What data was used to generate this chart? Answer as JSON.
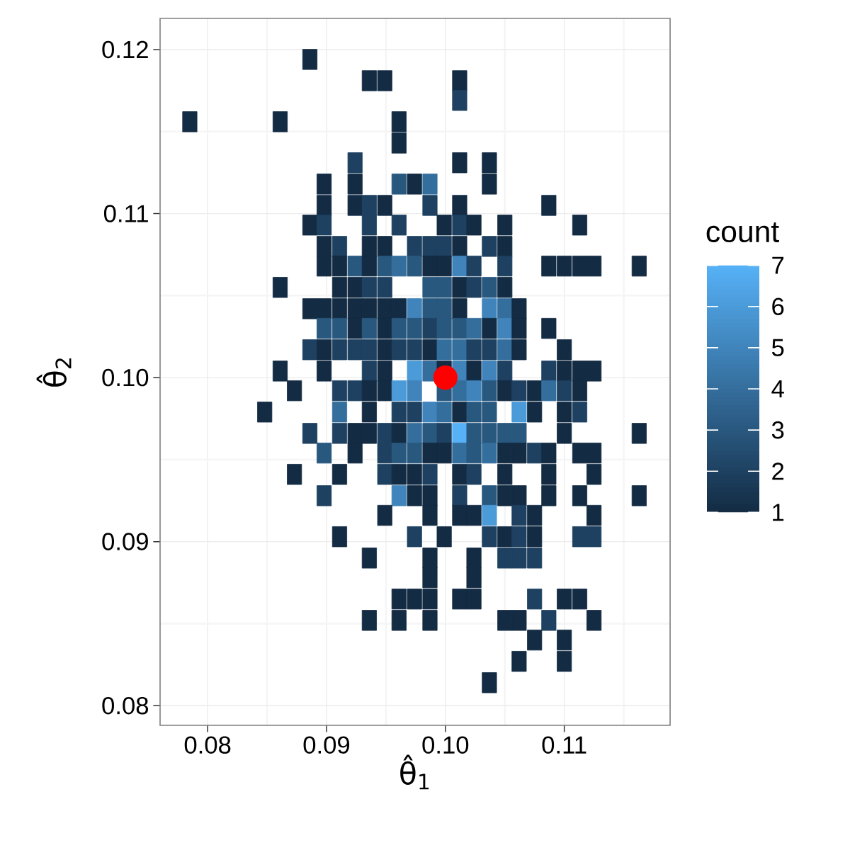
{
  "chart_data": {
    "type": "scatter",
    "marker": "square",
    "xlabel": "θ̂$_{1}$",
    "ylabel": "θ̂$_{2}$",
    "clabel": "count",
    "xlim": [
      0.076,
      0.1189
    ],
    "ylim": [
      0.0788,
      0.1219
    ],
    "xticks": [
      0.08,
      0.09,
      {
        "value": 0.1,
        "label": "0.10"
      },
      0.11
    ],
    "yticks": [
      0.08,
      0.09,
      {
        "value": 0.1,
        "label": "0.10"
      },
      0.11,
      0.12
    ],
    "clim": [
      1,
      7
    ],
    "cticks": [
      1,
      2,
      3,
      4,
      5,
      6,
      7
    ],
    "grid": true,
    "series": [
      {
        "x": [
          0.0886,
          0.0936,
          0.0949,
          0.1012,
          0.1012,
          0.0785,
          0.0861,
          0.0961,
          0.0961,
          0.0924,
          0.1012,
          0.1037,
          0.0898,
          0.0924,
          0.0961,
          0.0974,
          0.0987,
          0.1037,
          0.0898,
          0.0924,
          0.0936,
          0.0949,
          0.0987,
          0.1012,
          0.1087,
          0.0886,
          0.0898,
          0.0936,
          0.0961,
          0.0999,
          0.1012,
          0.1024,
          0.105,
          0.1113,
          0.0898,
          0.0911,
          0.0936,
          0.0949,
          0.0974,
          0.0987,
          0.0999,
          0.1012,
          0.1037,
          0.105,
          0.0898,
          0.0911,
          0.0924,
          0.0936,
          0.0949,
          0.0961,
          0.0974,
          0.0987,
          0.0999,
          0.1012,
          0.1024,
          0.105,
          0.1087,
          0.11,
          0.1113,
          0.1125,
          0.1163,
          0.0861,
          0.0911,
          0.0924,
          0.0936,
          0.0949,
          0.0987,
          0.0999,
          0.1012,
          0.1024,
          0.1037,
          0.105,
          0.0886,
          0.0898,
          0.0911,
          0.0924,
          0.0936,
          0.0949,
          0.0961,
          0.0974,
          0.0987,
          0.0999,
          0.1012,
          0.1037,
          0.105,
          0.1062,
          0.0898,
          0.0911,
          0.0924,
          0.0936,
          0.0949,
          0.0961,
          0.0974,
          0.0987,
          0.0999,
          0.1012,
          0.1024,
          0.1037,
          0.105,
          0.1062,
          0.1087,
          0.0886,
          0.0898,
          0.0911,
          0.0924,
          0.0936,
          0.0949,
          0.0961,
          0.0974,
          0.0987,
          0.0999,
          0.1012,
          0.1024,
          0.1037,
          0.105,
          0.1062,
          0.11,
          0.0861,
          0.0898,
          0.0936,
          0.0949,
          0.0974,
          0.0987,
          0.0999,
          0.1012,
          0.1024,
          0.1037,
          0.105,
          0.1087,
          0.11,
          0.1113,
          0.1125,
          0.0873,
          0.0911,
          0.0924,
          0.0936,
          0.0949,
          0.0961,
          0.0974,
          0.0999,
          0.1012,
          0.1024,
          0.1037,
          0.105,
          0.1062,
          0.1075,
          0.1087,
          0.11,
          0.1113,
          0.0848,
          0.0911,
          0.0936,
          0.0961,
          0.0974,
          0.0987,
          0.0999,
          0.1012,
          0.1024,
          0.1037,
          0.1062,
          0.1075,
          0.11,
          0.1113,
          0.0886,
          0.0911,
          0.0924,
          0.0936,
          0.0949,
          0.0961,
          0.0974,
          0.0987,
          0.0999,
          0.1012,
          0.1024,
          0.1037,
          0.105,
          0.1062,
          0.11,
          0.1163,
          0.0898,
          0.0924,
          0.0949,
          0.0961,
          0.0974,
          0.0987,
          0.0999,
          0.1012,
          0.1024,
          0.1037,
          0.105,
          0.1062,
          0.1075,
          0.1087,
          0.1113,
          0.1125,
          0.0873,
          0.0911,
          0.0949,
          0.0961,
          0.0974,
          0.0987,
          0.1012,
          0.1024,
          0.105,
          0.1087,
          0.1125,
          0.0898,
          0.0961,
          0.0974,
          0.0987,
          0.1012,
          0.1037,
          0.105,
          0.1062,
          0.1087,
          0.1113,
          0.1163,
          0.0949,
          0.0987,
          0.1012,
          0.1024,
          0.1037,
          0.1062,
          0.1075,
          0.1125,
          0.0911,
          0.0974,
          0.0999,
          0.1037,
          0.105,
          0.1062,
          0.1075,
          0.1113,
          0.1125,
          0.0936,
          0.0987,
          0.1024,
          0.105,
          0.1062,
          0.1075,
          0.0987,
          0.1024,
          0.0961,
          0.0974,
          0.0987,
          0.1012,
          0.1024,
          0.1075,
          0.11,
          0.1113,
          0.0936,
          0.0961,
          0.0987,
          0.105,
          0.1062,
          0.1087,
          0.1125,
          0.1075,
          0.11,
          0.1062,
          0.11,
          0.1037
        ],
        "values": [
          0.1194,
          0.1181,
          0.1181,
          0.1181,
          0.1169,
          0.1156,
          0.1156,
          0.1156,
          0.1143,
          0.1131,
          0.1131,
          0.1131,
          0.1118,
          0.1118,
          0.1118,
          0.1118,
          0.1118,
          0.1118,
          0.1105,
          0.1105,
          0.1105,
          0.1105,
          0.1105,
          0.1105,
          0.1105,
          0.1093,
          0.1093,
          0.1093,
          0.1093,
          0.1093,
          0.1093,
          0.1093,
          0.1093,
          0.1093,
          0.108,
          0.108,
          0.108,
          0.108,
          0.108,
          0.108,
          0.108,
          0.108,
          0.108,
          0.108,
          0.1068,
          0.1068,
          0.1068,
          0.1068,
          0.1068,
          0.1068,
          0.1068,
          0.1068,
          0.1068,
          0.1068,
          0.1068,
          0.1068,
          0.1068,
          0.1068,
          0.1068,
          0.1068,
          0.1068,
          0.1055,
          0.1055,
          0.1055,
          0.1055,
          0.1055,
          0.1055,
          0.1055,
          0.1055,
          0.1055,
          0.1055,
          0.1055,
          0.1042,
          0.1042,
          0.1042,
          0.1042,
          0.1042,
          0.1042,
          0.1042,
          0.1042,
          0.1042,
          0.1042,
          0.1042,
          0.1042,
          0.1042,
          0.1042,
          0.103,
          0.103,
          0.103,
          0.103,
          0.103,
          0.103,
          0.103,
          0.103,
          0.103,
          0.103,
          0.103,
          0.103,
          0.103,
          0.103,
          0.103,
          0.1017,
          0.1017,
          0.1017,
          0.1017,
          0.1017,
          0.1017,
          0.1017,
          0.1017,
          0.1017,
          0.1017,
          0.1017,
          0.1017,
          0.1017,
          0.1017,
          0.1017,
          0.1017,
          0.1004,
          0.1004,
          0.1004,
          0.1004,
          0.1004,
          0.1004,
          0.1004,
          0.1004,
          0.1004,
          0.1004,
          0.1004,
          0.1004,
          0.1004,
          0.1004,
          0.1004,
          0.0992,
          0.0992,
          0.0992,
          0.0992,
          0.0992,
          0.0992,
          0.0992,
          0.0992,
          0.0992,
          0.0992,
          0.0992,
          0.0992,
          0.0992,
          0.0992,
          0.0992,
          0.0992,
          0.0992,
          0.0979,
          0.0979,
          0.0979,
          0.0979,
          0.0979,
          0.0979,
          0.0979,
          0.0979,
          0.0979,
          0.0979,
          0.0979,
          0.0979,
          0.0979,
          0.0979,
          0.0966,
          0.0966,
          0.0966,
          0.0966,
          0.0966,
          0.0966,
          0.0966,
          0.0966,
          0.0966,
          0.0966,
          0.0966,
          0.0966,
          0.0966,
          0.0966,
          0.0966,
          0.0966,
          0.0954,
          0.0954,
          0.0954,
          0.0954,
          0.0954,
          0.0954,
          0.0954,
          0.0954,
          0.0954,
          0.0954,
          0.0954,
          0.0954,
          0.0954,
          0.0954,
          0.0954,
          0.0954,
          0.0941,
          0.0941,
          0.0941,
          0.0941,
          0.0941,
          0.0941,
          0.0941,
          0.0941,
          0.0941,
          0.0941,
          0.0941,
          0.0928,
          0.0928,
          0.0928,
          0.0928,
          0.0928,
          0.0928,
          0.0928,
          0.0928,
          0.0928,
          0.0928,
          0.0928,
          0.0916,
          0.0916,
          0.0916,
          0.0916,
          0.0916,
          0.0916,
          0.0916,
          0.0916,
          0.0903,
          0.0903,
          0.0903,
          0.0903,
          0.0903,
          0.0903,
          0.0903,
          0.0903,
          0.0903,
          0.089,
          0.089,
          0.089,
          0.089,
          0.089,
          0.089,
          0.0878,
          0.0878,
          0.0865,
          0.0865,
          0.0865,
          0.0865,
          0.0865,
          0.0865,
          0.0865,
          0.0865,
          0.0852,
          0.0852,
          0.0852,
          0.0852,
          0.0852,
          0.0852,
          0.0852,
          0.084,
          0.084,
          0.0827,
          0.0827,
          0.0814
        ],
        "cvalues": [
          1,
          1,
          1,
          1,
          2,
          1,
          1,
          1,
          1,
          2,
          1,
          1,
          1,
          1,
          3,
          1,
          4,
          1,
          1,
          1,
          2,
          1,
          2,
          1,
          1,
          1,
          2,
          2,
          2,
          1,
          2,
          1,
          1,
          1,
          1,
          2,
          1,
          1,
          2,
          2,
          2,
          1,
          2,
          1,
          1,
          1,
          3,
          1,
          3,
          4,
          3,
          1,
          1,
          5,
          2,
          2,
          1,
          1,
          1,
          1,
          1,
          1,
          1,
          1,
          2,
          2,
          3,
          3,
          1,
          2,
          3,
          1,
          1,
          1,
          1,
          1,
          1,
          1,
          1,
          5,
          3,
          3,
          1,
          5,
          4,
          1,
          3,
          3,
          1,
          3,
          1,
          3,
          3,
          2,
          3,
          3,
          4,
          1,
          5,
          1,
          1,
          2,
          1,
          2,
          2,
          2,
          1,
          2,
          2,
          1,
          4,
          4,
          2,
          2,
          4,
          1,
          1,
          1,
          1,
          2,
          1,
          6,
          4,
          1,
          5,
          1,
          5,
          2,
          2,
          1,
          1,
          1,
          1,
          2,
          2,
          1,
          1,
          6,
          5,
          3,
          4,
          5,
          3,
          1,
          2,
          1,
          4,
          2,
          1,
          1,
          4,
          1,
          2,
          2,
          5,
          4,
          1,
          3,
          3,
          6,
          1,
          1,
          2,
          2,
          2,
          1,
          1,
          2,
          1,
          4,
          3,
          2,
          7,
          3,
          3,
          3,
          3,
          1,
          1,
          3,
          1,
          2,
          3,
          3,
          1,
          1,
          4,
          3,
          4,
          1,
          1,
          2,
          1,
          1,
          1,
          1,
          1,
          2,
          1,
          1,
          2,
          1,
          2,
          1,
          1,
          1,
          2,
          5,
          1,
          1,
          2,
          3,
          1,
          1,
          1,
          1,
          1,
          1,
          1,
          1,
          1,
          6,
          2,
          1,
          1,
          1,
          2,
          1,
          2,
          1,
          2,
          1,
          2,
          2,
          1,
          1,
          1,
          2,
          2,
          2,
          1,
          1,
          1,
          1,
          1,
          1,
          1,
          2,
          1,
          1,
          1,
          1,
          1,
          1,
          1,
          2,
          1,
          1,
          1,
          1,
          1,
          1
        ],
        "colors": [
          "#132B43",
          "#132B43",
          "#132B43",
          "#132B43",
          "#1E4161",
          "#132B43",
          "#132B43",
          "#132B43",
          "#132B43",
          "#1E4161",
          "#132B43",
          "#132B43",
          "#132B43",
          "#132B43",
          "#29587F",
          "#132B43",
          "#346E9D",
          "#132B43",
          "#132B43",
          "#132B43",
          "#1E4161",
          "#132B43",
          "#1E4161",
          "#132B43",
          "#132B43",
          "#132B43",
          "#1E4161",
          "#1E4161",
          "#1E4161",
          "#132B43",
          "#1E4161",
          "#132B43",
          "#132B43",
          "#132B43",
          "#132B43",
          "#1E4161",
          "#132B43",
          "#132B43",
          "#1E4161",
          "#1E4161",
          "#1E4161",
          "#132B43",
          "#1E4161",
          "#132B43",
          "#132B43",
          "#132B43",
          "#29587F",
          "#132B43",
          "#29587F",
          "#346E9D",
          "#29587F",
          "#132B43",
          "#132B43",
          "#4084BB",
          "#1E4161",
          "#1E4161",
          "#132B43",
          "#132B43",
          "#132B43",
          "#132B43",
          "#132B43",
          "#132B43",
          "#132B43",
          "#132B43",
          "#1E4161",
          "#1E4161",
          "#29587F",
          "#29587F",
          "#132B43",
          "#1E4161",
          "#29587F",
          "#132B43",
          "#132B43",
          "#132B43",
          "#132B43",
          "#132B43",
          "#132B43",
          "#132B43",
          "#132B43",
          "#4084BB",
          "#29587F",
          "#29587F",
          "#132B43",
          "#4084BB",
          "#346E9D",
          "#132B43",
          "#29587F",
          "#29587F",
          "#132B43",
          "#29587F",
          "#132B43",
          "#29587F",
          "#29587F",
          "#1E4161",
          "#29587F",
          "#29587F",
          "#346E9D",
          "#132B43",
          "#4084BB",
          "#132B43",
          "#132B43",
          "#1E4161",
          "#132B43",
          "#1E4161",
          "#1E4161",
          "#1E4161",
          "#132B43",
          "#1E4161",
          "#1E4161",
          "#132B43",
          "#346E9D",
          "#346E9D",
          "#1E4161",
          "#1E4161",
          "#346E9D",
          "#132B43",
          "#132B43",
          "#132B43",
          "#132B43",
          "#1E4161",
          "#132B43",
          "#4B9BD9",
          "#346E9D",
          "#132B43",
          "#4084BB",
          "#132B43",
          "#4084BB",
          "#1E4161",
          "#1E4161",
          "#132B43",
          "#132B43",
          "#132B43",
          "#132B43",
          "#1E4161",
          "#1E4161",
          "#132B43",
          "#132B43",
          "#4B9BD9",
          "#4084BB",
          "#29587F",
          "#346E9D",
          "#4084BB",
          "#29587F",
          "#132B43",
          "#1E4161",
          "#132B43",
          "#346E9D",
          "#1E4161",
          "#132B43",
          "#132B43",
          "#346E9D",
          "#132B43",
          "#1E4161",
          "#1E4161",
          "#4084BB",
          "#346E9D",
          "#132B43",
          "#29587F",
          "#29587F",
          "#4B9BD9",
          "#132B43",
          "#132B43",
          "#1E4161",
          "#1E4161",
          "#1E4161",
          "#132B43",
          "#132B43",
          "#1E4161",
          "#132B43",
          "#346E9D",
          "#29587F",
          "#1E4161",
          "#56B1F7",
          "#29587F",
          "#29587F",
          "#29587F",
          "#29587F",
          "#132B43",
          "#132B43",
          "#29587F",
          "#132B43",
          "#1E4161",
          "#29587F",
          "#29587F",
          "#132B43",
          "#132B43",
          "#346E9D",
          "#29587F",
          "#346E9D",
          "#132B43",
          "#132B43",
          "#1E4161",
          "#132B43",
          "#132B43",
          "#132B43",
          "#132B43",
          "#132B43",
          "#1E4161",
          "#132B43",
          "#132B43",
          "#1E4161",
          "#132B43",
          "#1E4161",
          "#132B43",
          "#132B43",
          "#132B43",
          "#1E4161",
          "#4084BB",
          "#132B43",
          "#132B43",
          "#1E4161",
          "#29587F",
          "#132B43",
          "#132B43",
          "#132B43",
          "#132B43",
          "#132B43",
          "#132B43",
          "#132B43",
          "#132B43",
          "#132B43",
          "#4B9BD9",
          "#1E4161",
          "#132B43",
          "#132B43",
          "#132B43",
          "#1E4161",
          "#132B43",
          "#1E4161",
          "#132B43",
          "#1E4161",
          "#132B43",
          "#1E4161",
          "#1E4161",
          "#132B43",
          "#132B43",
          "#132B43",
          "#1E4161",
          "#1E4161",
          "#1E4161",
          "#132B43",
          "#132B43",
          "#132B43",
          "#132B43",
          "#132B43",
          "#132B43",
          "#132B43",
          "#1E4161",
          "#132B43",
          "#132B43",
          "#132B43",
          "#132B43",
          "#132B43",
          "#132B43",
          "#132B43",
          "#1E4161",
          "#132B43",
          "#132B43",
          "#132B43",
          "#132B43",
          "#132B43",
          "#132B43"
        ]
      },
      {
        "marker": "circle",
        "color": "#ff0000",
        "x": [
          0.1
        ],
        "values": [
          0.1
        ]
      }
    ]
  }
}
